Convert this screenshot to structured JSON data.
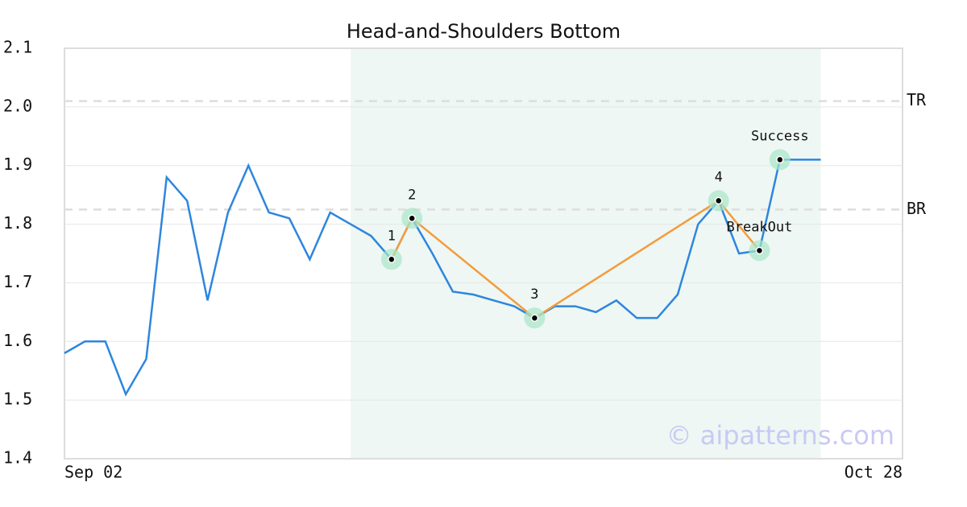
{
  "chart_data": {
    "type": "line",
    "title": "Head-and-Shoulders Bottom",
    "x": [
      0,
      1,
      2,
      3,
      4,
      5,
      6,
      7,
      8,
      9,
      10,
      11,
      12,
      13,
      14,
      15,
      16,
      17,
      18,
      19,
      20,
      21,
      22,
      23,
      24,
      25,
      26,
      27,
      28,
      29,
      30,
      31,
      32,
      33,
      34,
      35,
      36,
      37
    ],
    "values": [
      1.58,
      1.6,
      1.6,
      1.51,
      1.57,
      1.88,
      1.84,
      1.67,
      1.82,
      1.9,
      1.82,
      1.81,
      1.74,
      1.82,
      1.8,
      1.78,
      1.74,
      1.81,
      1.75,
      1.685,
      1.68,
      1.67,
      1.66,
      1.64,
      1.66,
      1.66,
      1.65,
      1.67,
      1.64,
      1.64,
      1.68,
      1.8,
      1.84,
      1.75,
      1.755,
      1.91,
      1.91,
      1.91
    ],
    "color": "#2e86de",
    "xlim": [
      0,
      41
    ],
    "xticks": [
      {
        "value": 0,
        "label": "Sep 02"
      },
      {
        "value": 41,
        "label": "Oct 28"
      }
    ],
    "ylim": [
      1.4,
      2.1
    ],
    "yticks": [
      1.4,
      1.5,
      1.6,
      1.7,
      1.8,
      1.9,
      {
        "value": 2,
        "label": "2.0"
      },
      2.1
    ],
    "grid": true,
    "highlight": [
      14,
      37
    ],
    "highlight_color": "#eef7f3",
    "reference_lines": [
      {
        "label": "TR",
        "value": 2.01
      },
      {
        "label": "BR",
        "value": 1.825
      }
    ],
    "pattern_color": "#f39c3d",
    "pattern_points": [
      {
        "label": "1",
        "x": 16,
        "y": 1.74
      },
      {
        "label": "2",
        "x": 17,
        "y": 1.81
      },
      {
        "label": "3",
        "x": 23,
        "y": 1.64
      },
      {
        "label": "4",
        "x": 32,
        "y": 1.84
      },
      {
        "label": "BreakOut",
        "x": 34,
        "y": 1.755
      }
    ],
    "success_point": {
      "label": "Success",
      "x": 35,
      "y": 1.91
    },
    "watermark": "© aipatterns.com"
  }
}
